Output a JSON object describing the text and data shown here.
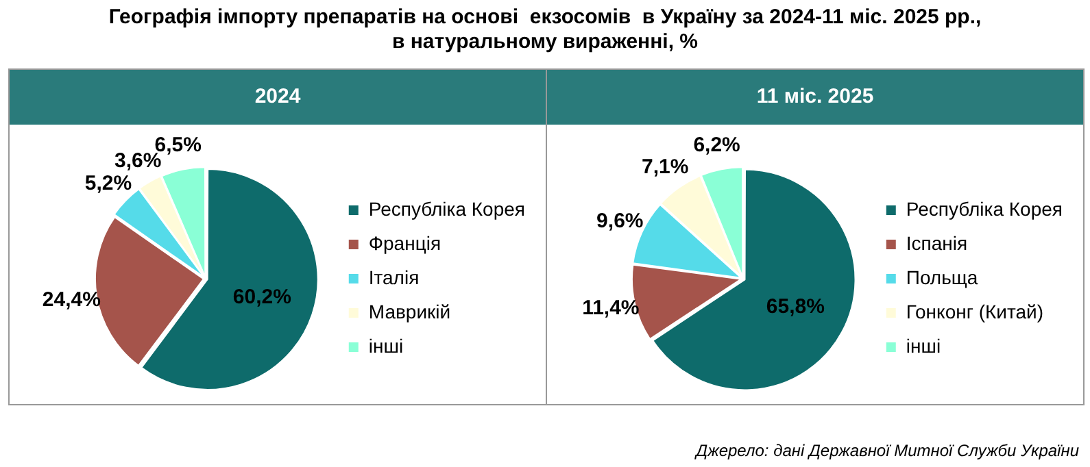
{
  "chart_data": [
    {
      "type": "pie",
      "title": "Географія імпорту препаратів на основі  екзосомів  в Україну за 2024-11 міс. 2025 рр., в натуральному вираженні, %",
      "subtitle": "2024",
      "categories": [
        "Республіка Корея",
        "Франція",
        "Італія",
        "Маврикій",
        "інші"
      ],
      "values": [
        60.2,
        24.4,
        5.2,
        3.6,
        6.5
      ],
      "value_labels": [
        "60,2%",
        "24,4%",
        "5,2%",
        "3,6%",
        "6,5%"
      ],
      "colors": [
        "#0e6b6b",
        "#a5544b",
        "#55dbe9",
        "#fffbd9",
        "#8affd6"
      ],
      "legend": "right"
    },
    {
      "type": "pie",
      "subtitle": "11 міс. 2025",
      "categories": [
        "Республіка Корея",
        "Іспанія",
        "Польща",
        "Гонконг (Китай)",
        "інші"
      ],
      "values": [
        65.8,
        11.4,
        9.6,
        7.1,
        6.2
      ],
      "value_labels": [
        "65,8%",
        "11,4%",
        "9,6%",
        "7,1%",
        "6,2%"
      ],
      "colors": [
        "#0e6b6b",
        "#a5544b",
        "#55dbe9",
        "#fffbd9",
        "#8affd6"
      ],
      "legend": "right",
      "annotations": [
        "Джерело: дані Державної Митної Служби України"
      ]
    }
  ]
}
